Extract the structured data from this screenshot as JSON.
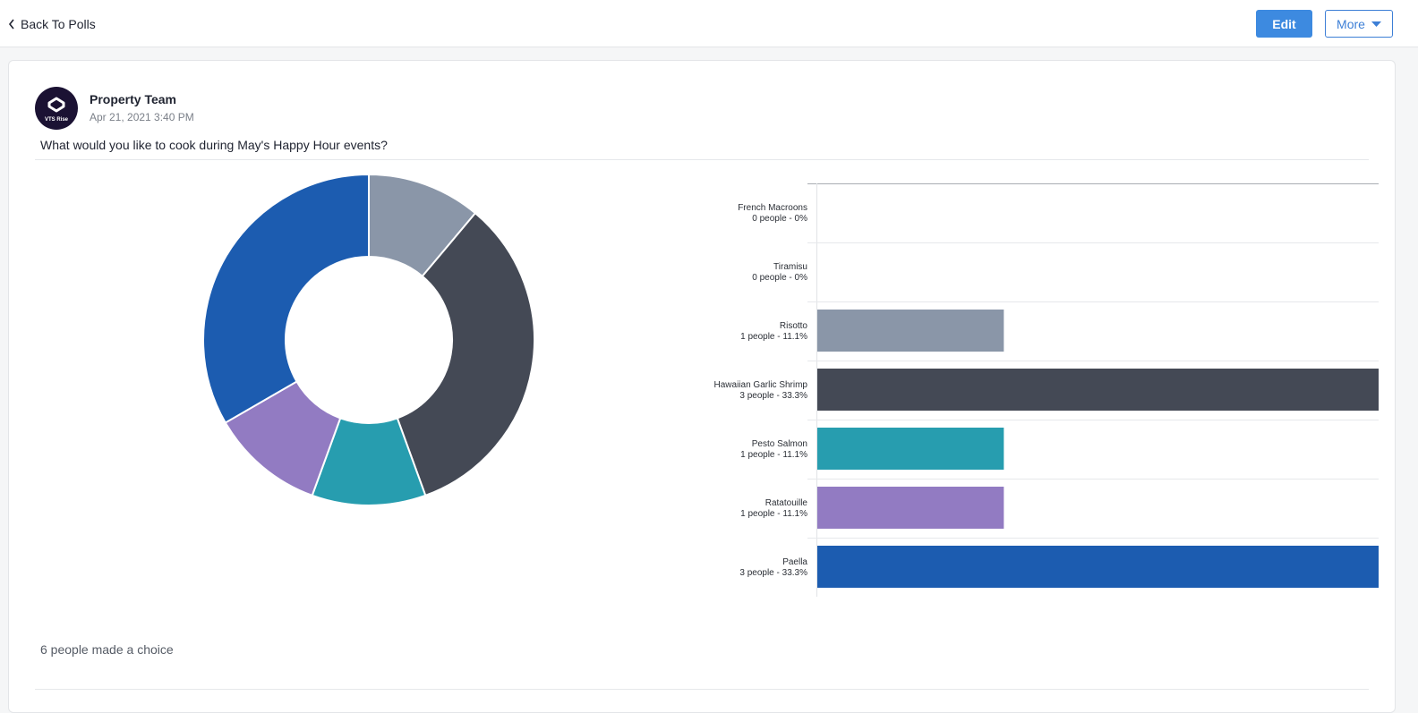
{
  "nav": {
    "back_label": "Back To Polls",
    "edit_label": "Edit",
    "more_label": "More"
  },
  "post": {
    "author": "Property Team",
    "timestamp": "Apr 21, 2021 3:40 PM",
    "avatar_text": "VTS Rise",
    "question": "What would you like to cook during May's Happy Hour events?",
    "summary": "6 people made a choice"
  },
  "colors": {
    "accent": "#3d8ae0",
    "avatar_bg": "#1b1233"
  },
  "chart_data": [
    {
      "type": "pie",
      "variant": "donut",
      "categories": [
        "French Macroons",
        "Tiramisu",
        "Risotto",
        "Hawaiian Garlic Shrimp",
        "Pesto Salmon",
        "Ratatouille",
        "Paella"
      ],
      "values": [
        0,
        0,
        1,
        3,
        1,
        1,
        3
      ],
      "colors": [
        "#f2b33d",
        "#6a5acd",
        "#8a96a8",
        "#444955",
        "#279daf",
        "#927bc2",
        "#1c5cb0"
      ]
    },
    {
      "type": "bar",
      "orientation": "horizontal",
      "categories": [
        "French Macroons",
        "Tiramisu",
        "Risotto",
        "Hawaiian Garlic Shrimp",
        "Pesto Salmon",
        "Ratatouille",
        "Paella"
      ],
      "values": [
        0,
        0,
        1,
        3,
        1,
        1,
        3
      ],
      "subtitles": [
        "0 people - 0%",
        "0 people - 0%",
        "1 people - 11.1%",
        "3 people - 33.3%",
        "1 people - 11.1%",
        "1 people - 11.1%",
        "3 people - 33.3%"
      ],
      "colors": [
        "#f2b33d",
        "#6a5acd",
        "#8a96a8",
        "#444955",
        "#279daf",
        "#927bc2",
        "#1c5cb0"
      ],
      "xlim": [
        0,
        3
      ]
    }
  ]
}
